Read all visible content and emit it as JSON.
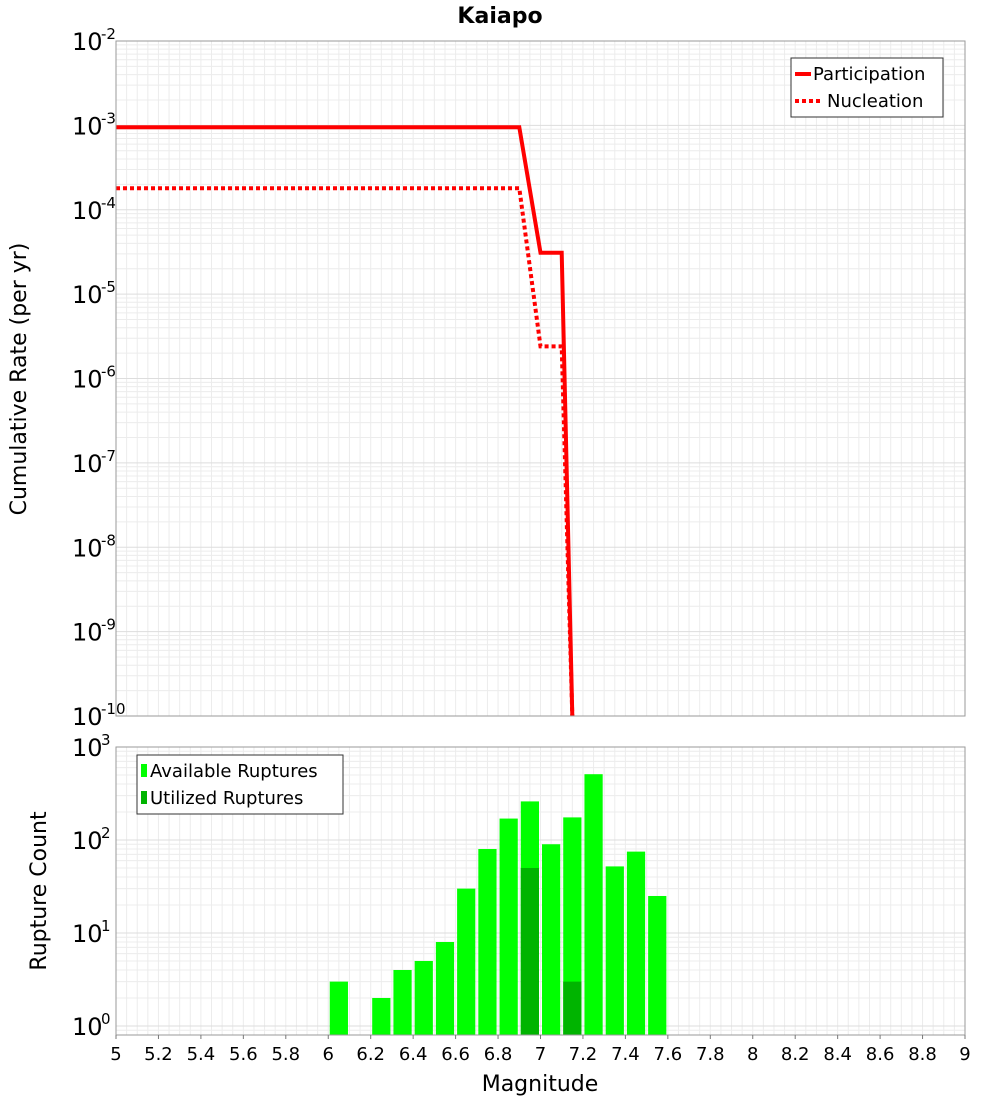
{
  "chart_data": [
    {
      "type": "line",
      "title": "Kaiapo",
      "ylabel": "Cumulative Rate (per yr)",
      "xlabel": "",
      "xlim": [
        5,
        9
      ],
      "ylim": [
        1e-10,
        0.01
      ],
      "yscale": "log",
      "ytick_mantissa": "10",
      "ytick_exponents": [
        "-10",
        "-9",
        "-8",
        "-7",
        "-6",
        "-5",
        "-4",
        "-3",
        "-2"
      ],
      "grid": true,
      "legend_position": "top-right",
      "series": [
        {
          "name": "Participation",
          "color": "#ff0000",
          "style": "solid",
          "x": [
            5.0,
            6.9,
            7.0,
            7.1,
            7.15
          ],
          "y": [
            0.00095,
            0.00095,
            3.1e-05,
            3.1e-05,
            1e-10
          ]
        },
        {
          "name": "Nucleation",
          "color": "#ff0000",
          "style": "dotted",
          "x": [
            5.0,
            6.9,
            7.0,
            7.1,
            7.15
          ],
          "y": [
            0.00018,
            0.00018,
            2.4e-06,
            2.4e-06,
            1e-10
          ]
        }
      ]
    },
    {
      "type": "bar",
      "xlabel": "Magnitude",
      "ylabel": "Rupture Count",
      "xlim": [
        5,
        9
      ],
      "ylim": [
        0.8,
        1000
      ],
      "yscale": "log",
      "ytick_mantissa": "10",
      "ytick_exponents": [
        "0",
        "1",
        "2",
        "3"
      ],
      "xticks": [
        "5",
        "5.2",
        "5.4",
        "5.6",
        "5.8",
        "6",
        "6.2",
        "6.4",
        "6.6",
        "6.8",
        "7",
        "7.2",
        "7.4",
        "7.6",
        "7.8",
        "8",
        "8.2",
        "8.4",
        "8.6",
        "8.8",
        "9"
      ],
      "grid": true,
      "legend_position": "top-left",
      "bin_width": 0.1,
      "series": [
        {
          "name": "Available Ruptures",
          "color": "#00ff00",
          "x": [
            6.05,
            6.25,
            6.35,
            6.45,
            6.55,
            6.65,
            6.75,
            6.85,
            6.95,
            7.05,
            7.15,
            7.25,
            7.35,
            7.45,
            7.55
          ],
          "values": [
            3,
            2,
            4,
            5,
            8,
            30,
            80,
            170,
            260,
            90,
            175,
            510,
            52,
            75,
            25
          ]
        },
        {
          "name": "Utilized Ruptures",
          "color": "#00b400",
          "x": [
            6.95,
            7.15
          ],
          "values": [
            50,
            3
          ]
        }
      ]
    }
  ]
}
